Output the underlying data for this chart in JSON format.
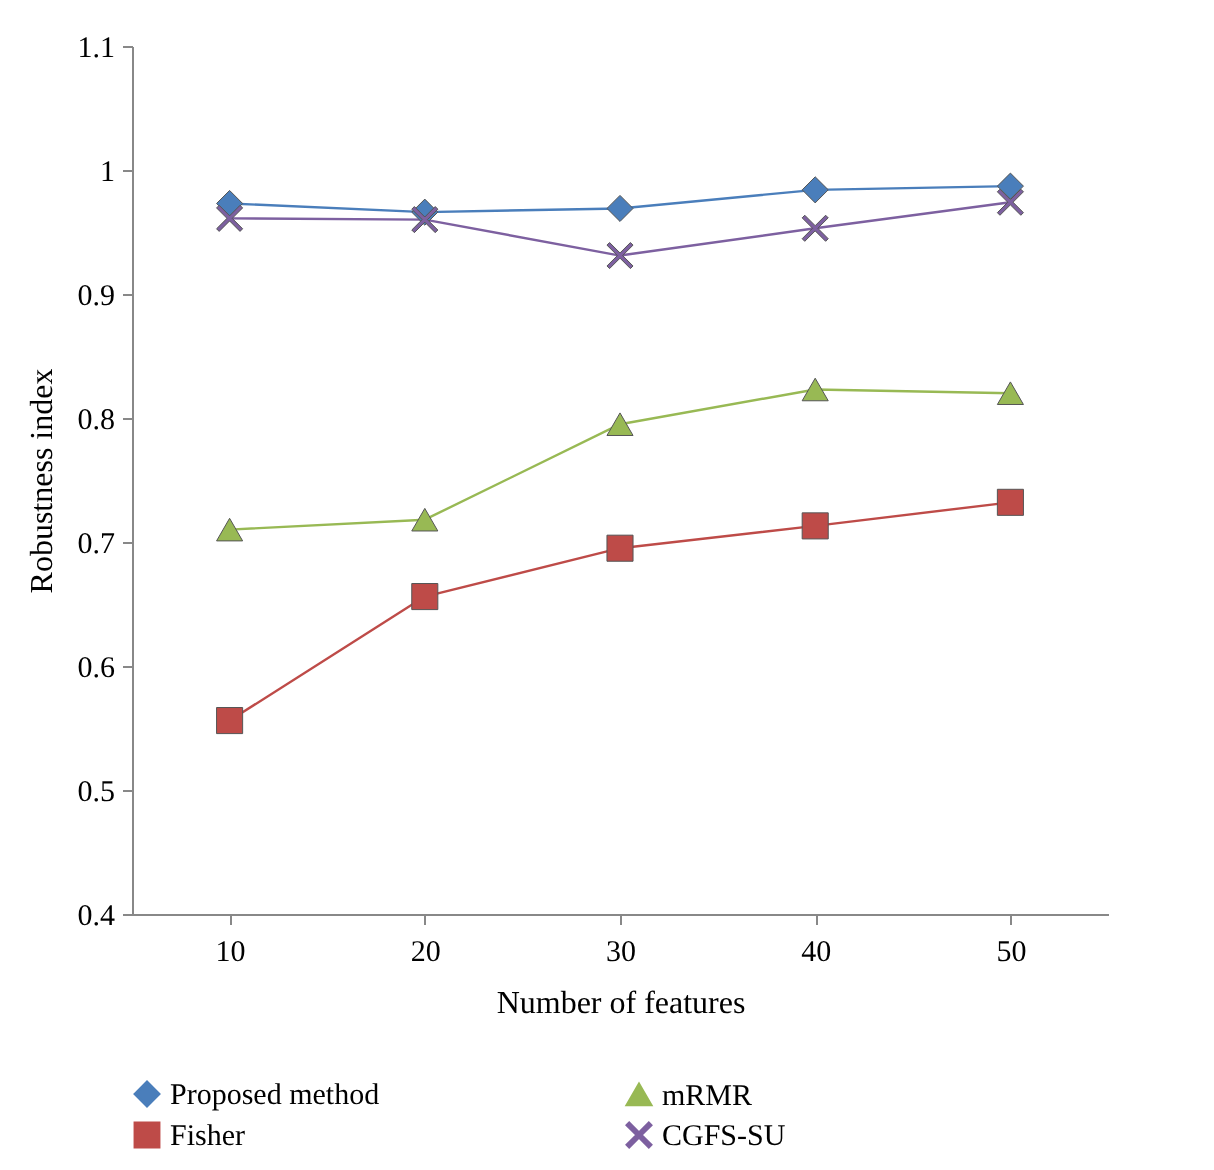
{
  "chart_data": {
    "type": "line",
    "xlabel": "Number of features",
    "ylabel": "Robustness index",
    "categories": [
      "10",
      "20",
      "30",
      "40",
      "50"
    ],
    "ylim": [
      0.4,
      1.1
    ],
    "yticks": [
      0.4,
      0.5,
      0.6,
      0.7,
      0.8,
      0.9,
      1,
      1.1
    ],
    "grid": false,
    "legend": "bottom",
    "series": [
      {
        "name": "Proposed method",
        "color": "#4a7ebb",
        "marker": "diamond",
        "values": [
          0.973,
          0.966,
          0.969,
          0.984,
          0.987
        ]
      },
      {
        "name": "Fisher",
        "color": "#be4b48",
        "marker": "square",
        "values": [
          0.556,
          0.656,
          0.695,
          0.713,
          0.732
        ]
      },
      {
        "name": "mRMR",
        "color": "#98b954",
        "marker": "triangle",
        "values": [
          0.71,
          0.718,
          0.795,
          0.823,
          0.82
        ]
      },
      {
        "name": "CGFS-SU",
        "color": "#7d60a0",
        "marker": "cross",
        "values": [
          0.961,
          0.96,
          0.931,
          0.953,
          0.974
        ]
      }
    ]
  }
}
